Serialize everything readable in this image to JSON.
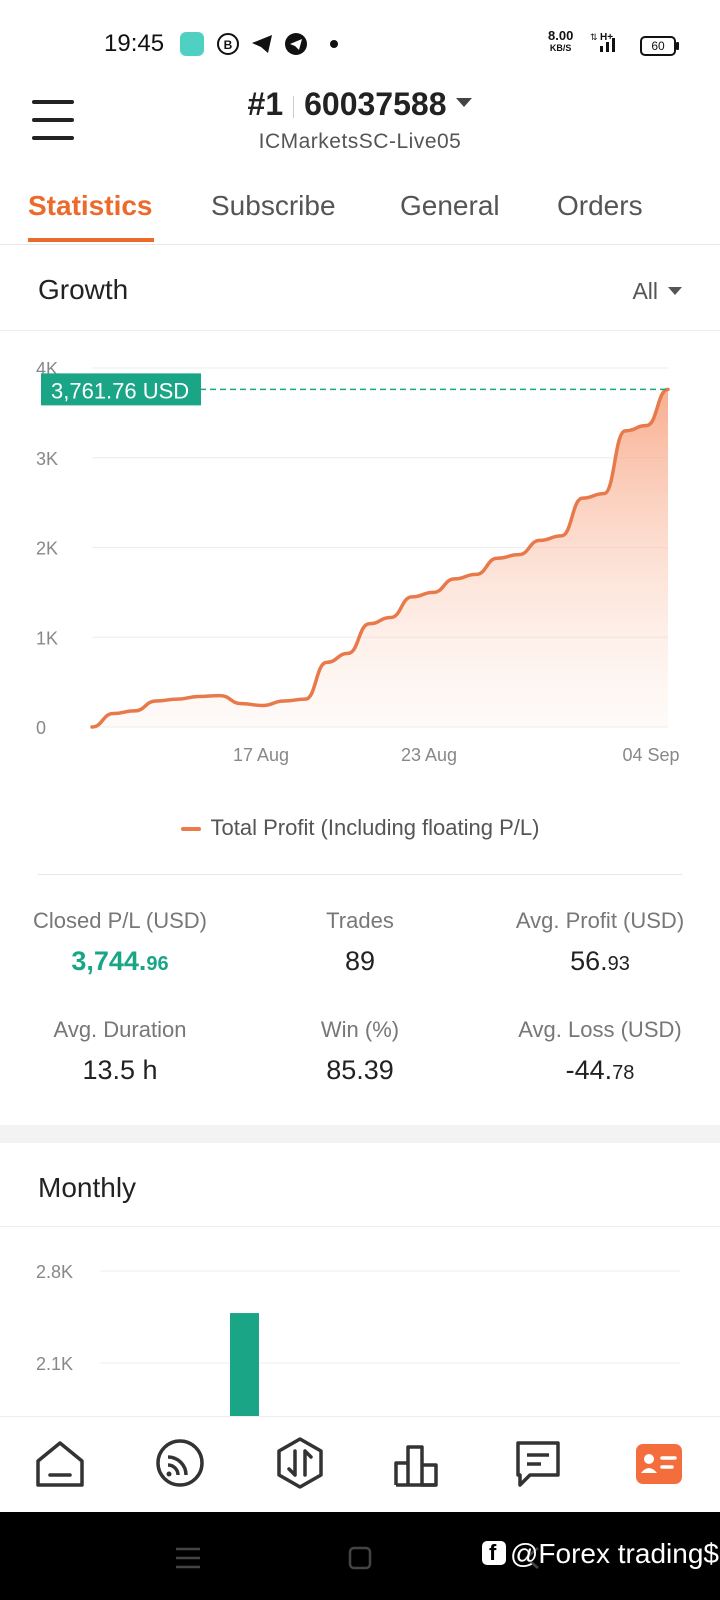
{
  "status_bar": {
    "time": "19:45",
    "net_speed": "8.00",
    "net_unit": "KB/S",
    "network": "H+",
    "battery": "60"
  },
  "header": {
    "account_number": "#1",
    "account_id": "60037588",
    "server": "ICMarketsSC-Live05"
  },
  "tabs": [
    {
      "label": "Statistics",
      "active": true
    },
    {
      "label": "Subscribe"
    },
    {
      "label": "General"
    },
    {
      "label": "Orders"
    }
  ],
  "growth": {
    "title": "Growth",
    "filter": "All",
    "current_value_label": "3,761.76 USD",
    "legend": "Total Profit (Including floating P/L)"
  },
  "stats": {
    "closed_pl": {
      "label": "Closed P/L (USD)",
      "int": "3,744.",
      "dec": "96"
    },
    "trades": {
      "label": "Trades",
      "value": "89"
    },
    "avg_profit": {
      "label": "Avg. Profit (USD)",
      "int": "56.",
      "dec": "93"
    },
    "avg_duration": {
      "label": "Avg. Duration",
      "value": "13.5 h"
    },
    "win": {
      "label": "Win (%)",
      "value": "85.39"
    },
    "avg_loss": {
      "label": "Avg. Loss (USD)",
      "int": "-44.",
      "dec": "78"
    }
  },
  "monthly": {
    "title": "Monthly"
  },
  "watermark": "@Forex trading$",
  "colors": {
    "accent": "#ec6a2a",
    "green": "#1aa586",
    "line": "#e8794a"
  },
  "chart_data": [
    {
      "type": "area",
      "title": "Growth",
      "y_ticks": [
        "0",
        "1K",
        "2K",
        "3K",
        "4K"
      ],
      "x_ticks": [
        "17 Aug",
        "23 Aug",
        "04 Sep"
      ],
      "ylim": [
        0,
        4000
      ],
      "series": [
        {
          "name": "Total Profit (Including floating P/L)",
          "values": [
            0,
            150,
            180,
            290,
            310,
            340,
            350,
            260,
            240,
            290,
            310,
            720,
            820,
            1150,
            1220,
            1450,
            1500,
            1650,
            1700,
            1880,
            1920,
            2080,
            2130,
            2550,
            2600,
            3300,
            3360,
            3761.76
          ]
        }
      ],
      "reference_value": 3761.76
    },
    {
      "type": "bar",
      "title": "Monthly",
      "y_ticks": [
        "2.8K",
        "2.1K"
      ],
      "values_visible": [
        2480
      ]
    }
  ]
}
